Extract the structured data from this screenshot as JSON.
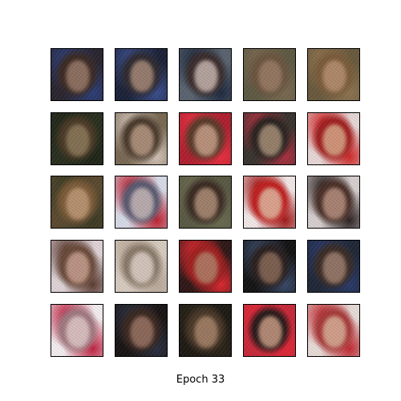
{
  "caption": "Epoch 33",
  "grid": {
    "rows": 5,
    "cols": 5,
    "images": [
      {
        "bg": "#2a2630",
        "hair": "#3b2a24",
        "face": "#9a7a6a",
        "accent": "#2d3f7a"
      },
      {
        "bg": "#1c2238",
        "hair": "#2e2a30",
        "face": "#a88a78",
        "accent": "#3b4f8e"
      },
      {
        "bg": "#5a6470",
        "hair": "#3a2c2c",
        "face": "#c9b6b0",
        "accent": "#1e2a40"
      },
      {
        "bg": "#5e5a44",
        "hair": "#6b5540",
        "face": "#9a7c66",
        "accent": "#7a6a50"
      },
      {
        "bg": "#6a5a3e",
        "hair": "#7a5c3a",
        "face": "#b89072",
        "accent": "#8e7450"
      },
      {
        "bg": "#2a3020",
        "hair": "#4a3a26",
        "face": "#8e7a5c",
        "accent": "#1e2618"
      },
      {
        "bg": "#7a6a54",
        "hair": "#4a3a2c",
        "face": "#b89a84",
        "accent": "#d4c4b8"
      },
      {
        "bg": "#b02030",
        "hair": "#5a3a2a",
        "face": "#c8a088",
        "accent": "#e83040"
      },
      {
        "bg": "#3a3530",
        "hair": "#2a2420",
        "face": "#a89078",
        "accent": "#b03040"
      },
      {
        "bg": "#e8d8d8",
        "hair": "#a02020",
        "face": "#d8a888",
        "accent": "#d02828"
      },
      {
        "bg": "#5a4a30",
        "hair": "#7a5a38",
        "face": "#c09a78",
        "accent": "#3a3a24"
      },
      {
        "bg": "#d8dce8",
        "hair": "#5a5a70",
        "face": "#c8b8b8",
        "accent": "#c02030"
      },
      {
        "bg": "#5a5a44",
        "hair": "#3a2a22",
        "face": "#b09078",
        "accent": "#6a6a50"
      },
      {
        "bg": "#f2e8e8",
        "hair": "#c02020",
        "face": "#e0b8a0",
        "accent": "#a01818"
      },
      {
        "bg": "#d8d0d0",
        "hair": "#4a3028",
        "face": "#b89080",
        "accent": "#2a2020"
      },
      {
        "bg": "#e0d4d8",
        "hair": "#6a4a3a",
        "face": "#c8a090",
        "accent": "#5a3a30"
      },
      {
        "bg": "#d8ccc0",
        "hair": "#8a7a6a",
        "face": "#e0d0c8",
        "accent": "#b8a898"
      },
      {
        "bg": "#301818",
        "hair": "#a02020",
        "face": "#b08068",
        "accent": "#e02a30"
      },
      {
        "bg": "#141414",
        "hair": "#2a2020",
        "face": "#8a6a58",
        "accent": "#3a4a6a"
      },
      {
        "bg": "#202838",
        "hair": "#3a2c26",
        "face": "#a08070",
        "accent": "#2a3a6a"
      },
      {
        "bg": "#f4eef0",
        "hair": "#a07880",
        "face": "#e0c8c8",
        "accent": "#c02040"
      },
      {
        "bg": "#1a1414",
        "hair": "#3a2820",
        "face": "#9a7464",
        "accent": "#2a3040"
      },
      {
        "bg": "#1e1a14",
        "hair": "#4a3828",
        "face": "#a8846a",
        "accent": "#2a2418"
      },
      {
        "bg": "#c82a3a",
        "hair": "#2a1a1a",
        "face": "#c89c84",
        "accent": "#e02838"
      },
      {
        "bg": "#e8dcd8",
        "hair": "#a83a3a",
        "face": "#d8b098",
        "accent": "#c02830"
      }
    ]
  }
}
